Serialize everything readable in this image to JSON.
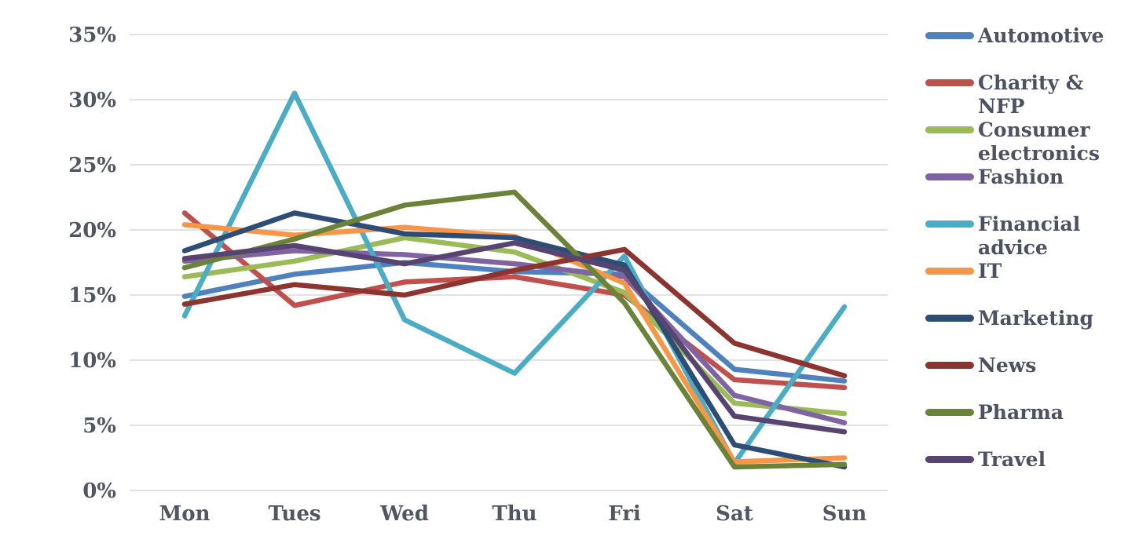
{
  "chart_data": {
    "type": "line",
    "title": "",
    "xlabel": "",
    "ylabel": "",
    "categories": [
      "Mon",
      "Tues",
      "Wed",
      "Thu",
      "Fri",
      "Sat",
      "Sun"
    ],
    "series": [
      {
        "name": "Automotive",
        "color": "#4F81BD",
        "values": [
          14.9,
          16.6,
          17.5,
          16.8,
          16.6,
          9.3,
          8.4
        ]
      },
      {
        "name": "Charity & NFP",
        "color": "#C0504D",
        "values": [
          21.3,
          14.2,
          16.0,
          16.4,
          15.0,
          8.5,
          7.9
        ]
      },
      {
        "name": "Consumer electronics",
        "color": "#9BBB59",
        "values": [
          16.4,
          17.6,
          19.4,
          18.3,
          15.2,
          6.7,
          5.9
        ]
      },
      {
        "name": "Fashion",
        "color": "#8064A2",
        "values": [
          17.6,
          18.4,
          18.1,
          17.4,
          16.4,
          7.3,
          5.2
        ]
      },
      {
        "name": "Financial advice",
        "color": "#4BACC6",
        "values": [
          13.4,
          30.5,
          13.1,
          9.0,
          18.0,
          2.1,
          14.1
        ]
      },
      {
        "name": "IT",
        "color": "#F79646",
        "values": [
          20.4,
          19.6,
          20.2,
          19.5,
          15.9,
          2.2,
          2.5
        ]
      },
      {
        "name": "Marketing",
        "color": "#2D4D74",
        "values": [
          18.4,
          21.3,
          19.7,
          19.4,
          17.3,
          3.5,
          1.8
        ]
      },
      {
        "name": "News",
        "color": "#8C342F",
        "values": [
          14.3,
          15.8,
          15.0,
          16.9,
          18.5,
          11.3,
          8.8
        ]
      },
      {
        "name": "Pharma",
        "color": "#6A8339",
        "values": [
          17.1,
          19.3,
          21.9,
          22.9,
          14.4,
          1.8,
          2.0
        ]
      },
      {
        "name": "Travel",
        "color": "#584470",
        "values": [
          17.8,
          18.8,
          17.4,
          19.0,
          16.9,
          5.7,
          4.5
        ]
      }
    ],
    "ylim": [
      0,
      35
    ],
    "yticks": [
      0,
      5,
      10,
      15,
      20,
      25,
      30,
      35
    ],
    "ytick_labels": [
      "0%",
      "5%",
      "10%",
      "15%",
      "20%",
      "25%",
      "30%",
      "35%"
    ],
    "grid": true,
    "legend_position": "right"
  },
  "colors": {
    "gridline": "#D8D8D8",
    "axis_text": "#505662",
    "legend_text": "#4C5261",
    "background": "#FFFFFF"
  }
}
